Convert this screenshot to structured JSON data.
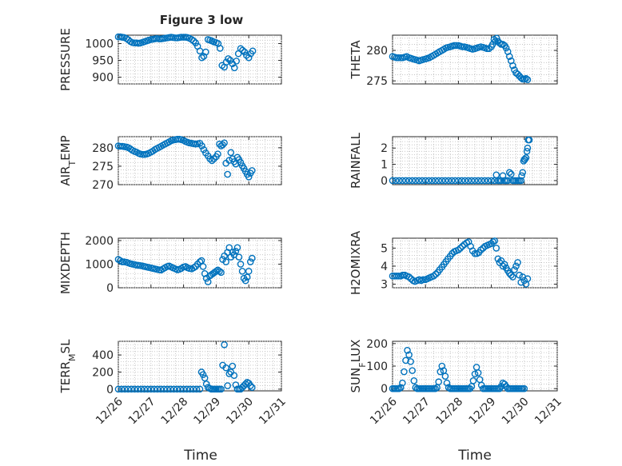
{
  "figure": {
    "title": "Figure 3 low",
    "xlabel": "Time",
    "x_ticks": [
      "12/26",
      "12/27",
      "12/28",
      "12/29",
      "12/30",
      "12/31"
    ],
    "marker_color": "#0072BD"
  },
  "chart_data": [
    {
      "type": "scatter",
      "title": "Figure 3 low",
      "ylabel": "PRESSURE",
      "xlabel": "",
      "ylim": [
        880,
        1025
      ],
      "yticks": [
        900,
        950,
        1000
      ],
      "grid": true,
      "x": [
        26.0,
        26.06,
        26.12,
        26.18,
        26.25,
        26.31,
        26.37,
        26.43,
        26.5,
        26.56,
        26.62,
        26.68,
        26.75,
        26.81,
        26.87,
        26.93,
        27.0,
        27.06,
        27.12,
        27.18,
        27.25,
        27.31,
        27.37,
        27.43,
        27.5,
        27.56,
        27.62,
        27.68,
        27.75,
        27.81,
        27.87,
        27.93,
        28.0,
        28.06,
        28.12,
        28.18,
        28.25,
        28.31,
        28.37,
        28.43,
        28.5,
        28.56,
        28.62,
        28.68,
        28.75,
        28.81,
        28.87,
        28.93,
        29.0,
        29.06,
        29.12,
        29.18,
        29.25,
        29.31,
        29.37,
        29.43,
        29.5,
        29.56,
        29.62,
        29.68,
        29.75,
        29.81,
        29.87,
        29.93,
        30.0,
        30.06,
        30.12
      ],
      "y": [
        1020,
        1020,
        1019,
        1018,
        1015,
        1011,
        1006,
        1003,
        1002,
        1002,
        1001,
        1002,
        1004,
        1006,
        1008,
        1010,
        1012,
        1013,
        1014,
        1015,
        1014,
        1014,
        1015,
        1016,
        1017,
        1018,
        1019,
        1018,
        1017,
        1017,
        1018,
        1019,
        1019,
        1019,
        1018,
        1016,
        1012,
        1008,
        1002,
        992,
        978,
        958,
        962,
        975,
        1012,
        1010,
        1008,
        1005,
        1003,
        1000,
        986,
        935,
        930,
        945,
        955,
        950,
        940,
        928,
        948,
        970,
        985,
        980,
        975,
        965,
        958,
        970,
        978
      ]
    },
    {
      "type": "scatter",
      "ylabel": "THETA",
      "xlabel": "",
      "ylim": [
        274.5,
        282.5
      ],
      "yticks": [
        275,
        280
      ],
      "grid": true,
      "x": [
        26.0,
        26.06,
        26.12,
        26.18,
        26.25,
        26.31,
        26.37,
        26.43,
        26.5,
        26.56,
        26.62,
        26.68,
        26.75,
        26.81,
        26.87,
        26.93,
        27.0,
        27.06,
        27.12,
        27.18,
        27.25,
        27.31,
        27.37,
        27.43,
        27.5,
        27.56,
        27.62,
        27.68,
        27.75,
        27.81,
        27.87,
        27.93,
        28.0,
        28.06,
        28.12,
        28.18,
        28.25,
        28.31,
        28.37,
        28.43,
        28.5,
        28.56,
        28.62,
        28.68,
        28.75,
        28.81,
        28.87,
        28.93,
        29.0,
        29.04,
        29.08,
        29.12,
        29.16,
        29.2,
        29.25,
        29.3,
        29.35,
        29.4,
        29.45,
        29.5,
        29.55,
        29.6,
        29.65,
        29.7,
        29.75,
        29.8,
        29.85,
        29.9,
        29.95,
        30.0,
        30.05,
        30.1
      ],
      "y": [
        279,
        278.9,
        278.8,
        278.8,
        278.8,
        278.8,
        278.9,
        279,
        278.8,
        278.7,
        278.6,
        278.5,
        278.4,
        278.3,
        278.4,
        278.5,
        278.6,
        278.7,
        278.8,
        279,
        279.2,
        279.4,
        279.6,
        279.8,
        280,
        280.2,
        280.4,
        280.5,
        280.6,
        280.7,
        280.8,
        280.8,
        280.8,
        280.7,
        280.6,
        280.6,
        280.5,
        280.4,
        280.3,
        280.2,
        280.3,
        280.4,
        280.5,
        280.6,
        280.5,
        280.4,
        280.3,
        280.3,
        280.6,
        281,
        281.8,
        281.5,
        282,
        281.5,
        281.2,
        281,
        281,
        280.8,
        280.4,
        279.8,
        279,
        278.3,
        277.5,
        276.8,
        276.3,
        276.1,
        275.8,
        275.5,
        275.3,
        275.3,
        275.4,
        275.2
      ]
    },
    {
      "type": "scatter",
      "ylabel": "AIR_TEMP",
      "xlabel": "",
      "ylim": [
        270,
        283
      ],
      "yticks": [
        270,
        275,
        280
      ],
      "grid": true,
      "x": [
        26.0,
        26.06,
        26.12,
        26.18,
        26.25,
        26.31,
        26.37,
        26.43,
        26.5,
        26.56,
        26.62,
        26.68,
        26.75,
        26.81,
        26.87,
        26.93,
        27.0,
        27.06,
        27.12,
        27.18,
        27.25,
        27.31,
        27.37,
        27.43,
        27.5,
        27.56,
        27.62,
        27.68,
        27.75,
        27.81,
        27.87,
        27.93,
        28.0,
        28.06,
        28.12,
        28.18,
        28.25,
        28.31,
        28.37,
        28.43,
        28.5,
        28.56,
        28.62,
        28.68,
        28.75,
        28.81,
        28.87,
        28.93,
        29.0,
        29.05,
        29.1,
        29.15,
        29.2,
        29.25,
        29.3,
        29.35,
        29.4,
        29.45,
        29.5,
        29.55,
        29.6,
        29.65,
        29.7,
        29.75,
        29.8,
        29.85,
        29.9,
        29.95,
        30.0,
        30.05,
        30.1
      ],
      "y": [
        280.5,
        280.4,
        280.4,
        280.3,
        280.2,
        280,
        279.7,
        279.3,
        279,
        278.8,
        278.5,
        278.3,
        278.2,
        278.2,
        278.3,
        278.5,
        278.8,
        279.1,
        279.5,
        279.8,
        280.1,
        280.4,
        280.7,
        281,
        281.3,
        281.6,
        281.9,
        282.1,
        282.2,
        282.3,
        282.3,
        282.2,
        282,
        281.7,
        281.5,
        281.3,
        281.2,
        281.1,
        281,
        281.1,
        281.2,
        280.5,
        279.5,
        278.6,
        277.8,
        277,
        276.5,
        277,
        277.6,
        278.3,
        281,
        280.5,
        280.8,
        281.3,
        275.8,
        272.8,
        276.6,
        278.7,
        277,
        276.2,
        275.6,
        277.4,
        276.8,
        276,
        275.1,
        274.4,
        273.6,
        272.8,
        272.1,
        273.1,
        273.8
      ]
    },
    {
      "type": "scatter",
      "ylabel": "RAINFALL",
      "xlabel": "",
      "ylim": [
        -0.25,
        2.7
      ],
      "yticks": [
        0,
        1,
        2
      ],
      "grid": true,
      "x": [
        26.0,
        26.1,
        26.2,
        26.3,
        26.4,
        26.5,
        26.6,
        26.7,
        26.8,
        26.9,
        27.0,
        27.1,
        27.2,
        27.3,
        27.4,
        27.5,
        27.6,
        27.7,
        27.8,
        27.9,
        28.0,
        28.1,
        28.2,
        28.3,
        28.4,
        28.5,
        28.6,
        28.7,
        28.8,
        28.9,
        29.0,
        29.1,
        29.15,
        29.2,
        29.25,
        29.3,
        29.35,
        29.4,
        29.45,
        29.5,
        29.55,
        29.6,
        29.65,
        29.7,
        29.75,
        29.8,
        29.85,
        29.9,
        29.92,
        29.95,
        29.98,
        30.0,
        30.02,
        30.05,
        30.08,
        30.1,
        30.12,
        30.15
      ],
      "y": [
        0,
        0,
        0,
        0,
        0,
        0,
        0,
        0,
        0,
        0,
        0,
        0,
        0,
        0,
        0,
        0,
        0,
        0,
        0,
        0,
        0,
        0,
        0,
        0,
        0,
        0,
        0,
        0,
        0,
        0,
        0,
        0,
        0.35,
        0,
        0,
        0,
        0.3,
        0,
        0,
        0,
        0.5,
        0.4,
        0,
        0,
        0,
        0,
        0,
        0,
        0.3,
        0.5,
        1.2,
        1.3,
        1.3,
        1.4,
        1.8,
        2.0,
        2.5,
        2.5
      ]
    },
    {
      "type": "scatter",
      "ylabel": "MIXDEPTH",
      "xlabel": "",
      "ylim": [
        0,
        2100
      ],
      "yticks": [
        0,
        1000,
        2000
      ],
      "grid": true,
      "x": [
        26.0,
        26.06,
        26.12,
        26.18,
        26.25,
        26.31,
        26.37,
        26.43,
        26.5,
        26.56,
        26.62,
        26.68,
        26.75,
        26.81,
        26.87,
        26.93,
        27.0,
        27.06,
        27.12,
        27.18,
        27.25,
        27.31,
        27.37,
        27.43,
        27.5,
        27.56,
        27.62,
        27.68,
        27.75,
        27.81,
        27.87,
        27.93,
        28.0,
        28.06,
        28.12,
        28.18,
        28.25,
        28.31,
        28.37,
        28.43,
        28.5,
        28.55,
        28.6,
        28.65,
        28.7,
        28.75,
        28.8,
        28.85,
        28.9,
        28.95,
        29.0,
        29.05,
        29.1,
        29.15,
        29.2,
        29.25,
        29.3,
        29.35,
        29.4,
        29.45,
        29.5,
        29.55,
        29.6,
        29.65,
        29.7,
        29.75,
        29.8,
        29.85,
        29.9,
        29.95,
        30.0,
        30.05,
        30.1
      ],
      "y": [
        1200,
        1150,
        1100,
        1100,
        1080,
        1050,
        1020,
        1000,
        980,
        960,
        950,
        940,
        920,
        900,
        880,
        860,
        840,
        820,
        800,
        780,
        760,
        750,
        800,
        850,
        900,
        920,
        880,
        840,
        800,
        760,
        780,
        820,
        880,
        900,
        850,
        820,
        800,
        850,
        900,
        1000,
        1100,
        1150,
        900,
        600,
        400,
        250,
        500,
        550,
        600,
        650,
        700,
        750,
        700,
        650,
        1200,
        1350,
        1100,
        1500,
        1700,
        1300,
        1500,
        1400,
        1550,
        1700,
        1300,
        1000,
        700,
        400,
        300,
        450,
        700,
        1100,
        1250
      ]
    },
    {
      "type": "scatter",
      "ylabel": "H2OMIXRA",
      "xlabel": "",
      "ylim": [
        2.8,
        5.55
      ],
      "yticks": [
        3,
        4,
        5
      ],
      "grid": true,
      "x": [
        26.0,
        26.06,
        26.12,
        26.18,
        26.25,
        26.31,
        26.37,
        26.43,
        26.5,
        26.56,
        26.62,
        26.68,
        26.75,
        26.81,
        26.87,
        26.93,
        27.0,
        27.06,
        27.12,
        27.18,
        27.25,
        27.31,
        27.37,
        27.43,
        27.5,
        27.56,
        27.62,
        27.68,
        27.75,
        27.81,
        27.87,
        27.93,
        28.0,
        28.06,
        28.12,
        28.18,
        28.25,
        28.31,
        28.37,
        28.43,
        28.5,
        28.56,
        28.62,
        28.68,
        28.75,
        28.81,
        28.87,
        28.93,
        29.0,
        29.05,
        29.1,
        29.15,
        29.2,
        29.25,
        29.3,
        29.35,
        29.4,
        29.45,
        29.5,
        29.55,
        29.6,
        29.65,
        29.7,
        29.75,
        29.8,
        29.85,
        29.9,
        29.95,
        30.0,
        30.05,
        30.1
      ],
      "y": [
        3.45,
        3.45,
        3.45,
        3.45,
        3.45,
        3.5,
        3.5,
        3.45,
        3.4,
        3.3,
        3.2,
        3.15,
        3.2,
        3.25,
        3.2,
        3.25,
        3.25,
        3.3,
        3.35,
        3.4,
        3.45,
        3.55,
        3.65,
        3.8,
        3.95,
        4.1,
        4.25,
        4.4,
        4.55,
        4.7,
        4.8,
        4.85,
        4.9,
        5.0,
        5.1,
        5.2,
        5.3,
        5.35,
        5.1,
        4.85,
        4.7,
        4.7,
        4.75,
        4.9,
        5.0,
        5.1,
        5.15,
        5.2,
        5.25,
        5.35,
        5.4,
        5.0,
        4.4,
        4.2,
        4.3,
        4.0,
        4.1,
        3.9,
        3.75,
        3.6,
        3.5,
        3.4,
        3.8,
        4.0,
        4.2,
        3.5,
        3.1,
        3.4,
        3.2,
        3.0,
        3.3
      ]
    },
    {
      "type": "scatter",
      "ylabel": "TERR_MSL",
      "xlabel": "",
      "ylim": [
        -20,
        560
      ],
      "yticks": [
        0,
        200,
        400
      ],
      "grid": true,
      "x": [
        26.0,
        26.1,
        26.2,
        26.3,
        26.4,
        26.5,
        26.6,
        26.7,
        26.8,
        26.9,
        27.0,
        27.1,
        27.2,
        27.3,
        27.4,
        27.5,
        27.6,
        27.7,
        27.8,
        27.9,
        28.0,
        28.1,
        28.2,
        28.3,
        28.4,
        28.5,
        28.55,
        28.6,
        28.65,
        28.7,
        28.75,
        28.8,
        28.85,
        28.9,
        28.95,
        29.0,
        29.05,
        29.1,
        29.15,
        29.2,
        29.25,
        29.3,
        29.35,
        29.4,
        29.45,
        29.5,
        29.55,
        29.6,
        29.65,
        29.7,
        29.75,
        29.8,
        29.85,
        29.9,
        29.95,
        30.0,
        30.05,
        30.1
      ],
      "y": [
        0,
        0,
        0,
        0,
        0,
        0,
        0,
        0,
        0,
        0,
        0,
        0,
        0,
        0,
        0,
        0,
        0,
        0,
        0,
        0,
        0,
        0,
        0,
        0,
        0,
        0,
        200,
        170,
        130,
        60,
        20,
        10,
        0,
        0,
        0,
        0,
        0,
        0,
        0,
        280,
        520,
        250,
        40,
        180,
        200,
        270,
        160,
        50,
        0,
        0,
        0,
        20,
        40,
        60,
        80,
        70,
        40,
        20
      ]
    },
    {
      "type": "scatter",
      "ylabel": "SUN_FLUX",
      "xlabel": "",
      "ylim": [
        -10,
        210
      ],
      "yticks": [
        0,
        100,
        200
      ],
      "grid": true,
      "x": [
        26.0,
        26.05,
        26.1,
        26.15,
        26.2,
        26.25,
        26.3,
        26.35,
        26.4,
        26.45,
        26.5,
        26.55,
        26.6,
        26.65,
        26.7,
        26.75,
        26.8,
        26.85,
        26.9,
        26.95,
        27.0,
        27.05,
        27.1,
        27.15,
        27.2,
        27.25,
        27.3,
        27.35,
        27.4,
        27.45,
        27.5,
        27.55,
        27.6,
        27.65,
        27.7,
        27.75,
        27.8,
        27.85,
        27.9,
        27.95,
        28.0,
        28.05,
        28.1,
        28.15,
        28.2,
        28.25,
        28.3,
        28.35,
        28.4,
        28.45,
        28.5,
        28.55,
        28.6,
        28.65,
        28.7,
        28.75,
        28.8,
        28.85,
        28.9,
        28.95,
        29.0,
        29.05,
        29.1,
        29.15,
        29.2,
        29.25,
        29.3,
        29.35,
        29.4,
        29.45,
        29.5,
        29.55,
        29.6,
        29.65,
        29.7,
        29.75,
        29.8,
        29.85,
        29.9,
        29.95,
        30.0
      ],
      "y": [
        0,
        0,
        0,
        0,
        0,
        5,
        25,
        75,
        125,
        170,
        150,
        120,
        80,
        35,
        5,
        0,
        0,
        0,
        0,
        0,
        0,
        0,
        0,
        0,
        0,
        0,
        0,
        5,
        30,
        75,
        100,
        80,
        55,
        25,
        5,
        0,
        0,
        0,
        0,
        0,
        0,
        0,
        0,
        0,
        0,
        0,
        0,
        0,
        10,
        35,
        65,
        95,
        70,
        40,
        15,
        0,
        0,
        0,
        0,
        0,
        0,
        0,
        0,
        0,
        0,
        0,
        10,
        25,
        20,
        10,
        0,
        0,
        0,
        0,
        0,
        0,
        0,
        0,
        0,
        0,
        0
      ]
    }
  ]
}
